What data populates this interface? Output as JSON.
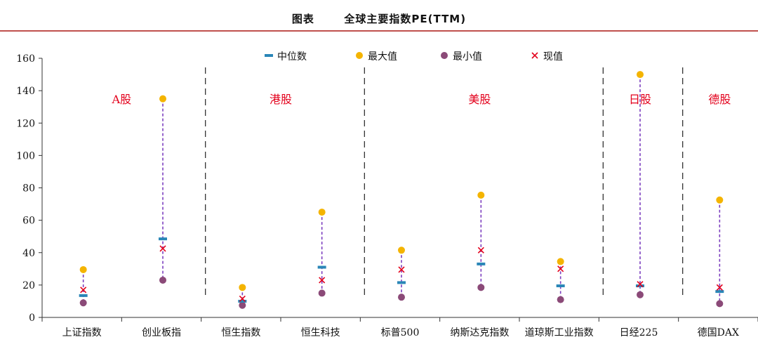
{
  "title_label": "图表",
  "title": "全球主要指数PE(TTM)",
  "colors": {
    "median": "#2a86b7",
    "max": "#f4b400",
    "min": "#8b4a78",
    "current": "#e3001b",
    "range_line": "#7c3fbf",
    "rule": "#c0504d",
    "separator": "#333333"
  },
  "chart_data": {
    "type": "scatter",
    "title": "全球主要指数PE(TTM)",
    "ylim": [
      0,
      160
    ],
    "yticks": [
      0,
      20,
      40,
      60,
      80,
      100,
      120,
      140,
      160
    ],
    "categories": [
      "上证指数",
      "创业板指",
      "恒生指数",
      "恒生科技",
      "标普500",
      "纳斯达克指数",
      "道琼斯工业指数",
      "日经225",
      "德国DAX"
    ],
    "legend": [
      "中位数",
      "最大值",
      "最小值",
      "现值"
    ],
    "legend_position": "top-center",
    "series": [
      {
        "name": "中位数",
        "marker": "dash",
        "values": [
          13.5,
          48.5,
          10,
          31,
          21.5,
          33,
          19.5,
          19.5,
          16
        ]
      },
      {
        "name": "最大值",
        "marker": "circle",
        "values": [
          29.5,
          135,
          18.5,
          65,
          41.5,
          75.5,
          34.5,
          150,
          72.5
        ]
      },
      {
        "name": "最小值",
        "marker": "circle",
        "values": [
          9,
          23,
          7.5,
          15,
          12.5,
          18.5,
          11,
          14,
          8.5
        ]
      },
      {
        "name": "现值",
        "marker": "x",
        "values": [
          17,
          42.5,
          11.5,
          23,
          29.5,
          41.5,
          30,
          20.5,
          18.5
        ]
      }
    ],
    "groups": [
      {
        "label": "A股",
        "categories": [
          0,
          1
        ]
      },
      {
        "label": "港股",
        "categories": [
          2,
          3
        ]
      },
      {
        "label": "美股",
        "categories": [
          4,
          5,
          6
        ]
      },
      {
        "label": "日股",
        "categories": [
          7
        ]
      },
      {
        "label": "德股",
        "categories": [
          8
        ]
      }
    ]
  }
}
